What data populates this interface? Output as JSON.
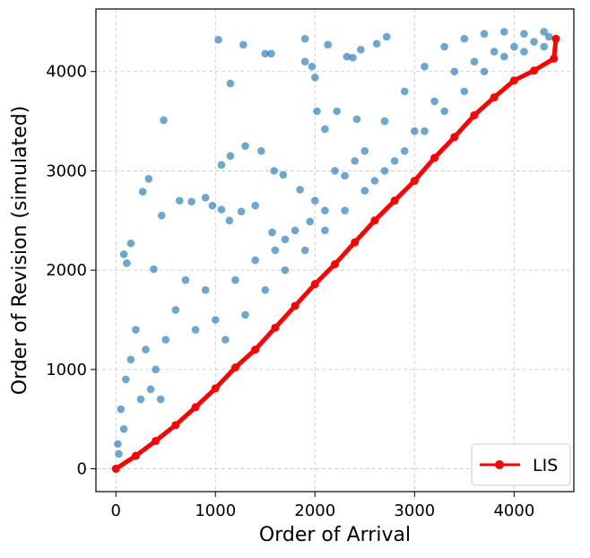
{
  "chart_data": {
    "type": "scatter",
    "title": "",
    "xlabel": "Order of Arrival",
    "ylabel": "Order of Revision (simulated)",
    "xlim": [
      -200,
      4600
    ],
    "ylim": [
      -230,
      4630
    ],
    "x_ticks": [
      0,
      1000,
      2000,
      3000,
      4000
    ],
    "y_ticks": [
      0,
      1000,
      2000,
      3000,
      4000
    ],
    "grid": true,
    "legend_position": "bottom-right",
    "series": [
      {
        "kind": "scatter",
        "color": "#1f77b4",
        "points": [
          [
            1030,
            4320
          ],
          [
            1280,
            4270
          ],
          [
            1500,
            4180
          ],
          [
            1560,
            4180
          ],
          [
            1900,
            4330
          ],
          [
            2130,
            4270
          ],
          [
            2320,
            4150
          ],
          [
            2380,
            4140
          ],
          [
            2460,
            4220
          ],
          [
            2620,
            4280
          ],
          [
            2720,
            4350
          ],
          [
            1900,
            4100
          ],
          [
            1970,
            4050
          ],
          [
            2000,
            3940
          ],
          [
            1150,
            3880
          ],
          [
            480,
            3510
          ],
          [
            2020,
            3600
          ],
          [
            2220,
            3600
          ],
          [
            2100,
            3420
          ],
          [
            2420,
            3520
          ],
          [
            1060,
            3060
          ],
          [
            1150,
            3150
          ],
          [
            1300,
            3250
          ],
          [
            1460,
            3200
          ],
          [
            1590,
            3000
          ],
          [
            1680,
            2960
          ],
          [
            330,
            2920
          ],
          [
            270,
            2790
          ],
          [
            460,
            2550
          ],
          [
            640,
            2700
          ],
          [
            760,
            2690
          ],
          [
            900,
            2730
          ],
          [
            150,
            2270
          ],
          [
            80,
            2160
          ],
          [
            380,
            2010
          ],
          [
            110,
            2070
          ],
          [
            970,
            2650
          ],
          [
            1060,
            2610
          ],
          [
            1140,
            2500
          ],
          [
            1260,
            2590
          ],
          [
            1400,
            2650
          ],
          [
            1570,
            2380
          ],
          [
            1700,
            2310
          ],
          [
            1850,
            2810
          ],
          [
            1950,
            2490
          ],
          [
            2100,
            2600
          ],
          [
            2300,
            2950
          ],
          [
            2500,
            3200
          ],
          [
            2700,
            3500
          ],
          [
            2900,
            3800
          ],
          [
            3100,
            4050
          ],
          [
            3300,
            4250
          ],
          [
            3500,
            4330
          ],
          [
            3700,
            4380
          ],
          [
            3900,
            4400
          ],
          [
            4100,
            4380
          ],
          [
            4300,
            4400
          ],
          [
            3400,
            4000
          ],
          [
            3600,
            4100
          ],
          [
            3800,
            4200
          ],
          [
            4000,
            4250
          ],
          [
            4200,
            4300
          ],
          [
            3000,
            3400
          ],
          [
            3200,
            3700
          ],
          [
            2600,
            2900
          ],
          [
            2800,
            3100
          ],
          [
            600,
            1600
          ],
          [
            700,
            1900
          ],
          [
            800,
            1400
          ],
          [
            900,
            1800
          ],
          [
            1000,
            1500
          ],
          [
            1200,
            1900
          ],
          [
            1400,
            2100
          ],
          [
            1600,
            2200
          ],
          [
            1800,
            2400
          ],
          [
            2000,
            2700
          ],
          [
            2200,
            3000
          ],
          [
            2400,
            3100
          ],
          [
            200,
            1400
          ],
          [
            300,
            1200
          ],
          [
            400,
            1000
          ],
          [
            500,
            1300
          ],
          [
            100,
            900
          ],
          [
            150,
            1100
          ],
          [
            50,
            600
          ],
          [
            80,
            400
          ],
          [
            20,
            250
          ],
          [
            30,
            150
          ],
          [
            250,
            700
          ],
          [
            350,
            800
          ],
          [
            450,
            700
          ],
          [
            1100,
            1300
          ],
          [
            1300,
            1550
          ],
          [
            1500,
            1800
          ],
          [
            1700,
            2000
          ],
          [
            1900,
            2200
          ],
          [
            2100,
            2400
          ],
          [
            2300,
            2600
          ],
          [
            2500,
            2800
          ],
          [
            2700,
            3000
          ],
          [
            2900,
            3200
          ],
          [
            3100,
            3400
          ],
          [
            3300,
            3600
          ],
          [
            3500,
            3800
          ],
          [
            3700,
            4000
          ],
          [
            3900,
            4150
          ],
          [
            4100,
            4200
          ],
          [
            4300,
            4250
          ],
          [
            4350,
            4350
          ]
        ]
      },
      {
        "kind": "line",
        "name": "LIS",
        "color": "#ff0000",
        "points": [
          [
            0,
            0
          ],
          [
            200,
            130
          ],
          [
            400,
            280
          ],
          [
            600,
            440
          ],
          [
            800,
            620
          ],
          [
            1000,
            810
          ],
          [
            1200,
            1020
          ],
          [
            1400,
            1200
          ],
          [
            1600,
            1420
          ],
          [
            1800,
            1640
          ],
          [
            2000,
            1860
          ],
          [
            2200,
            2060
          ],
          [
            2400,
            2280
          ],
          [
            2600,
            2500
          ],
          [
            2800,
            2700
          ],
          [
            3000,
            2900
          ],
          [
            3200,
            3130
          ],
          [
            3400,
            3340
          ],
          [
            3600,
            3560
          ],
          [
            3800,
            3740
          ],
          [
            4000,
            3910
          ],
          [
            4200,
            4010
          ],
          [
            4400,
            4130
          ],
          [
            4420,
            4330
          ]
        ]
      }
    ]
  }
}
